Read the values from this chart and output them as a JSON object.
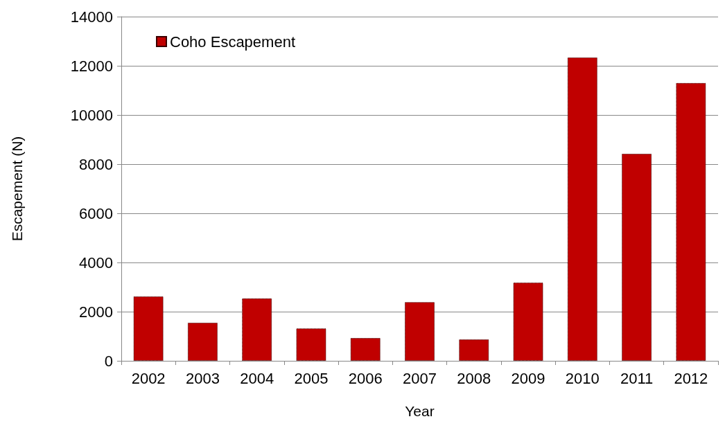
{
  "chart_data": {
    "type": "bar",
    "xlabel": "Year",
    "ylabel": "Escapement (N)",
    "categories": [
      "2002",
      "2003",
      "2004",
      "2005",
      "2006",
      "2007",
      "2008",
      "2009",
      "2010",
      "2011",
      "2012"
    ],
    "series": [
      {
        "name": "Coho Escapement",
        "color": "#c00000",
        "values": [
          2620,
          1550,
          2540,
          1320,
          930,
          2390,
          870,
          3180,
          12340,
          8420,
          11300
        ]
      }
    ],
    "ylim": [
      0,
      14000
    ],
    "yticks": [
      0,
      2000,
      4000,
      6000,
      8000,
      10000,
      12000,
      14000
    ],
    "grid": "y",
    "legend": "top left"
  }
}
